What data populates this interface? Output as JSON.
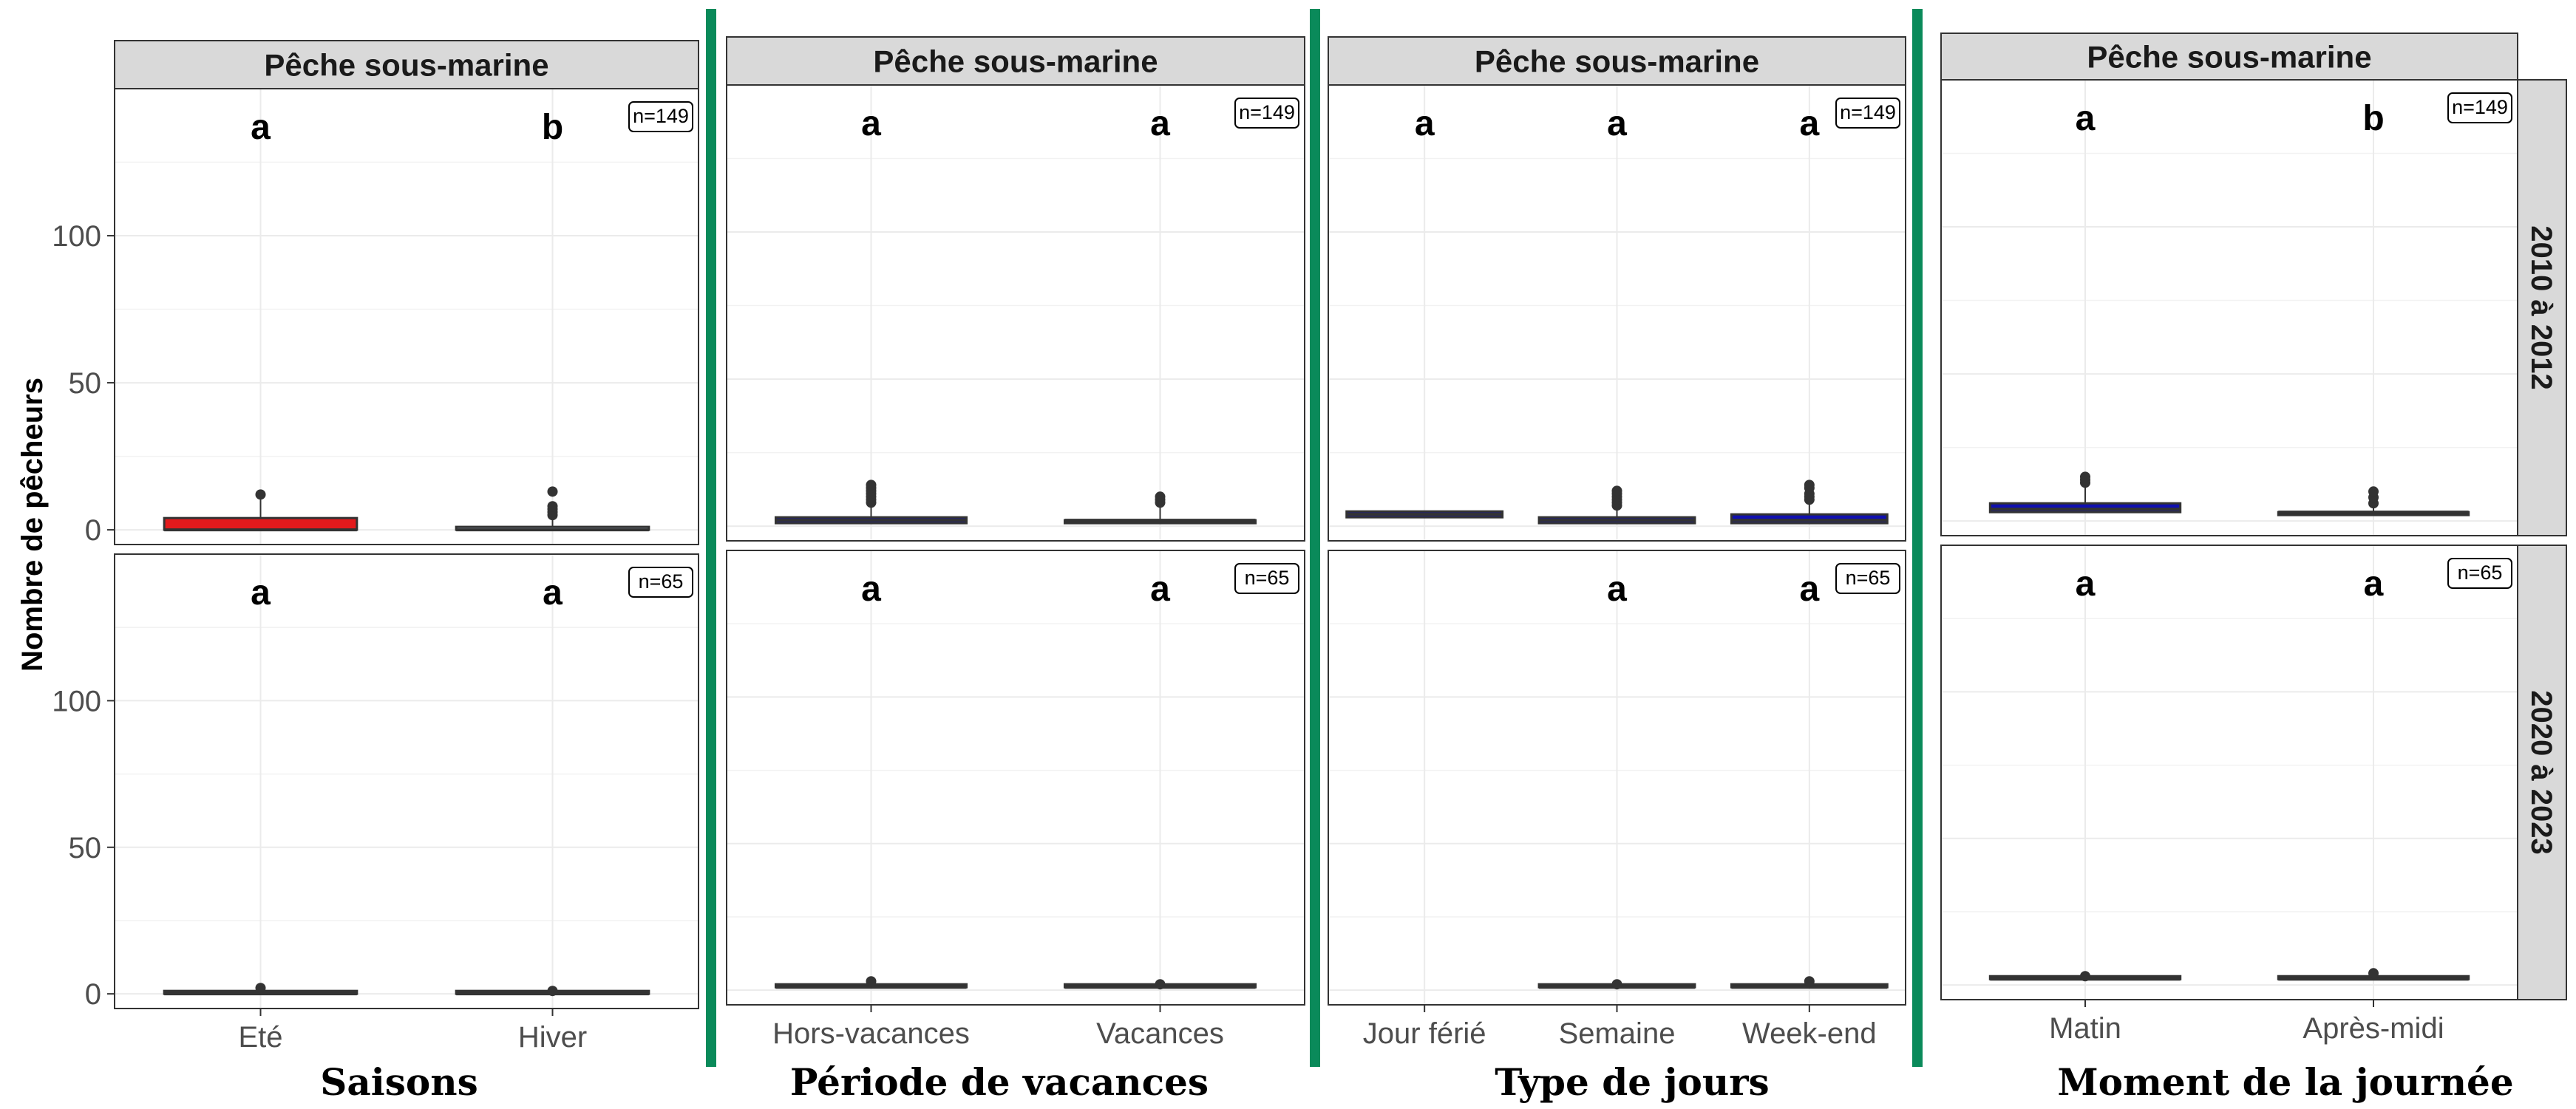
{
  "colors": {
    "divider": "#0a8a5a",
    "strip_bg": "#d9d9d9",
    "panel_border": "#333333",
    "grid": "#ebebeb",
    "box_line": "#333333"
  },
  "chart_data": {
    "type": "box",
    "ylabel": "Nombre de pêcheurs",
    "yticks": [
      0,
      50,
      100
    ],
    "ylim": [
      -5,
      150
    ],
    "grid": true,
    "rows": [
      "2010 à 2012",
      "2020 à 2023"
    ],
    "facets": [
      {
        "strip": "Pêche sous-marine",
        "group_title": "Saisons",
        "categories": [
          "Eté",
          "Hiver"
        ],
        "panels": [
          {
            "n_label": "n=149",
            "letters": [
              "a",
              "b"
            ],
            "boxes": [
              {
                "category": "Eté",
                "fill": "#e31a1c",
                "q1": 0,
                "median": 0,
                "q3": 4,
                "outliers": [
                  12
                ]
              },
              {
                "category": "Hiver",
                "fill": "#8a9aa8",
                "q1": 0,
                "median": 0,
                "q3": 1,
                "outliers": [
                  5,
                  6,
                  7,
                  8,
                  13
                ]
              }
            ]
          },
          {
            "n_label": "n=65",
            "letters": [
              "a",
              "a"
            ],
            "boxes": [
              {
                "category": "Eté",
                "fill": "#333333",
                "q1": 0,
                "median": 0,
                "q3": 0,
                "outliers": [
                  2
                ]
              },
              {
                "category": "Hiver",
                "fill": "#333333",
                "q1": 0,
                "median": 0,
                "q3": 0,
                "outliers": [
                  1
                ]
              }
            ]
          }
        ]
      },
      {
        "strip": "Pêche sous-marine",
        "group_title": "Période de vacances",
        "categories": [
          "Hors-vacances",
          "Vacances"
        ],
        "panels": [
          {
            "n_label": "n=149",
            "letters": [
              "a",
              "a"
            ],
            "boxes": [
              {
                "category": "Hors-vacances",
                "fill": "#1010b0",
                "q1": 1,
                "median": 2,
                "q3": 3,
                "outliers": [
                  8,
                  9,
                  10,
                  11,
                  12,
                  13,
                  14
                ]
              },
              {
                "category": "Vacances",
                "fill": "#333333",
                "q1": 1,
                "median": 2,
                "q3": 2,
                "outliers": [
                  8,
                  9,
                  10
                ]
              }
            ]
          },
          {
            "n_label": "n=65",
            "letters": [
              "a",
              "a"
            ],
            "boxes": [
              {
                "category": "Hors-vacances",
                "fill": "#333333",
                "q1": 1,
                "median": 1,
                "q3": 1,
                "outliers": [
                  3
                ]
              },
              {
                "category": "Vacances",
                "fill": "#333333",
                "q1": 1,
                "median": 1,
                "q3": 1,
                "outliers": [
                  2
                ]
              }
            ]
          }
        ]
      },
      {
        "strip": "Pêche sous-marine",
        "group_title": "Type de jours",
        "categories": [
          "Jour férié",
          "Semaine",
          "Week-end"
        ],
        "panels": [
          {
            "n_label": "n=149",
            "letters": [
              "a",
              "a",
              "a"
            ],
            "boxes": [
              {
                "category": "Jour férié",
                "fill": "#1010b0",
                "q1": 3,
                "median": 4,
                "q3": 5,
                "outliers": []
              },
              {
                "category": "Semaine",
                "fill": "#1010b0",
                "q1": 1,
                "median": 2,
                "q3": 3,
                "outliers": [
                  7,
                  8,
                  9,
                  10,
                  11,
                  12
                ]
              },
              {
                "category": "Week-end",
                "fill": "#1010b0",
                "q1": 1,
                "median": 2,
                "q3": 4,
                "outliers": [
                  9,
                  10,
                  11,
                  13,
                  14
                ]
              }
            ]
          },
          {
            "n_label": "n=65",
            "letters": [
              "",
              "a",
              "a"
            ],
            "boxes": [
              {
                "category": "Semaine",
                "fill": "#333333",
                "q1": 1,
                "median": 1,
                "q3": 1,
                "outliers": [
                  2
                ]
              },
              {
                "category": "Week-end",
                "fill": "#333333",
                "q1": 1,
                "median": 1,
                "q3": 1,
                "outliers": [
                  3
                ]
              }
            ]
          }
        ]
      },
      {
        "strip": "Pêche sous-marine",
        "group_title": "Moment de la journée",
        "categories": [
          "Matin",
          "Après-midi"
        ],
        "panels": [
          {
            "n_label": "n=149",
            "letters": [
              "a",
              "b"
            ],
            "boxes": [
              {
                "category": "Matin",
                "fill": "#1010b0",
                "q1": 3,
                "median": 4,
                "q3": 6,
                "outliers": [
                  13,
                  14,
                  15
                ]
              },
              {
                "category": "Après-midi",
                "fill": "#333333",
                "q1": 2,
                "median": 3,
                "q3": 3,
                "outliers": [
                  6,
                  8,
                  10
                ]
              }
            ]
          },
          {
            "n_label": "n=65",
            "letters": [
              "a",
              "a"
            ],
            "boxes": [
              {
                "category": "Matin",
                "fill": "#333333",
                "q1": 2,
                "median": 2,
                "q3": 2,
                "outliers": [
                  3
                ]
              },
              {
                "category": "Après-midi",
                "fill": "#333333",
                "q1": 2,
                "median": 2,
                "q3": 2,
                "outliers": [
                  4
                ]
              }
            ]
          }
        ]
      }
    ]
  }
}
